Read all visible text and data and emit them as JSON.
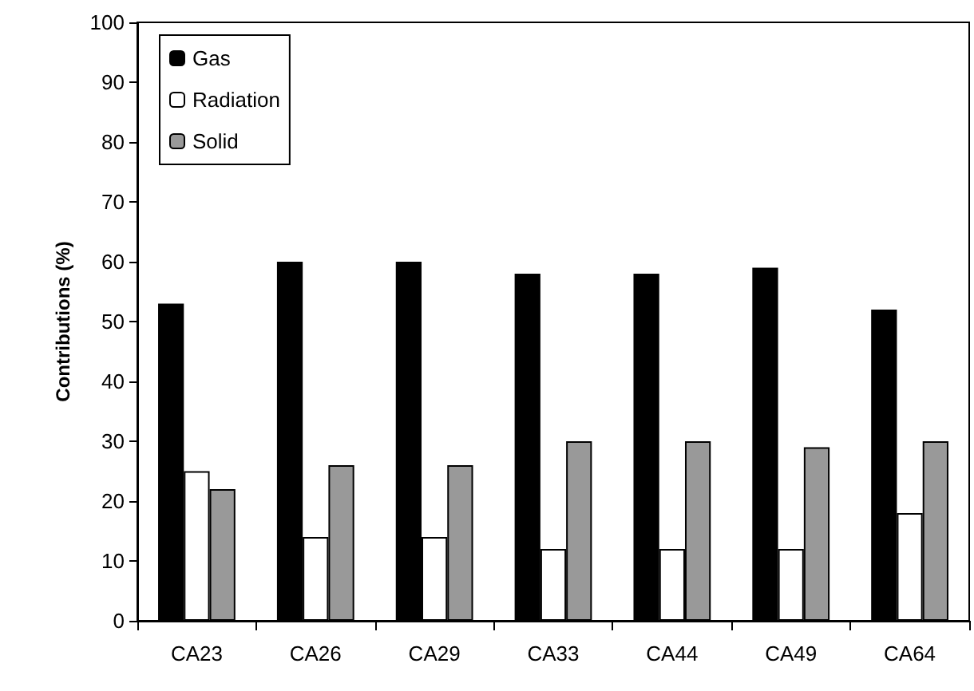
{
  "chart_data": {
    "type": "bar",
    "ylabel": "Contributions (%)",
    "categories": [
      "CA23",
      "CA26",
      "CA29",
      "CA33",
      "CA44",
      "CA49",
      "CA64"
    ],
    "series": [
      {
        "name": "Gas",
        "color": "#000000",
        "values": [
          53,
          60,
          60,
          58,
          58,
          59,
          52
        ]
      },
      {
        "name": "Radiation",
        "color": "#ffffff",
        "values": [
          25,
          14,
          14,
          12,
          12,
          12,
          18
        ]
      },
      {
        "name": "Solid",
        "color": "#999999",
        "values": [
          22,
          26,
          26,
          30,
          30,
          29,
          30
        ]
      }
    ],
    "ylim": [
      0,
      100
    ],
    "yticks": [
      0,
      10,
      20,
      30,
      40,
      50,
      60,
      70,
      80,
      90,
      100
    ],
    "grid": false,
    "legend": "top left"
  }
}
